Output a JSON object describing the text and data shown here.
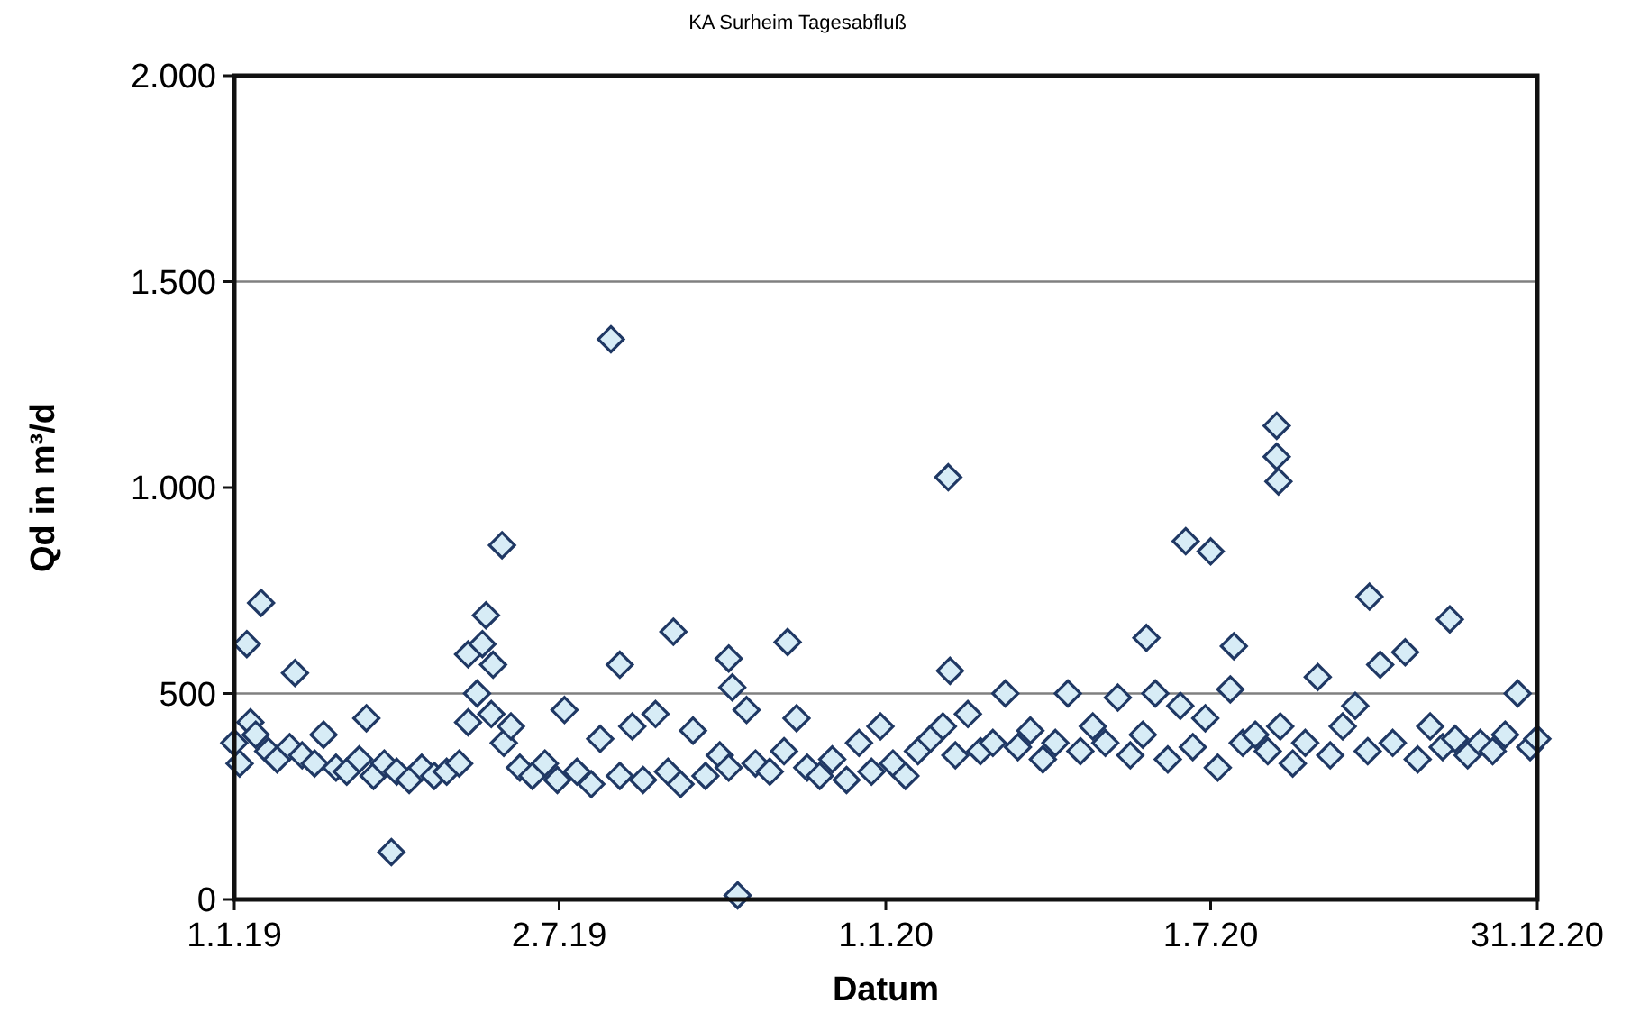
{
  "chart_data": {
    "type": "scatter",
    "title": "KA Surheim Tagesabfluß",
    "xlabel": "Datum",
    "ylabel": "Qd in m³/d",
    "xlim": [
      "2019-01-01",
      "2020-12-31"
    ],
    "xticks": [
      {
        "value": "2019-01-01",
        "label": "1.1.19"
      },
      {
        "value": "2019-07-02",
        "label": "2.7.19"
      },
      {
        "value": "2020-01-01",
        "label": "1.1.20"
      },
      {
        "value": "2020-07-01",
        "label": "1.7.20"
      },
      {
        "value": "2020-12-31",
        "label": "31.12.20"
      }
    ],
    "ylim": [
      0,
      2000
    ],
    "yticks": [
      0,
      {
        "value": 500,
        "label": "500"
      },
      {
        "value": 1000,
        "label": "1.000"
      },
      {
        "value": 1500,
        "label": "1.500"
      },
      {
        "value": 2000,
        "label": "2.000"
      }
    ],
    "ref_lines": [
      {
        "axis": "y",
        "value": 500,
        "color": "#808080"
      },
      {
        "axis": "y",
        "value": 1500,
        "color": "#808080"
      }
    ],
    "marker": "diamond",
    "series": [
      {
        "color": "#1f3864",
        "x": [
          "2019-01-01",
          "2019-01-04",
          "2019-01-10",
          "2019-01-13",
          "2019-01-20",
          "2019-01-25",
          "2019-02-01",
          "2019-02-08",
          "2019-02-15",
          "2019-02-20",
          "2019-02-27",
          "2019-03-05",
          "2019-03-12",
          "2019-03-20",
          "2019-03-26",
          "2019-04-02",
          "2019-04-09",
          "2019-04-16",
          "2019-04-23",
          "2019-04-30",
          "2019-05-07",
          "2019-05-12",
          "2019-05-17",
          "2019-05-25",
          "2019-06-01",
          "2019-06-05",
          "2019-06-10",
          "2019-06-17",
          "2019-06-24",
          "2019-07-01",
          "2019-07-05",
          "2019-07-12",
          "2019-07-20",
          "2019-07-25",
          "2019-08-05",
          "2019-08-12",
          "2019-08-18",
          "2019-08-25",
          "2019-09-01",
          "2019-09-08",
          "2019-09-15",
          "2019-09-22",
          "2019-09-30",
          "2019-10-05",
          "2019-10-15",
          "2019-10-20",
          "2019-10-28",
          "2019-11-05",
          "2019-11-12",
          "2019-11-18",
          "2019-11-25",
          "2019-12-02",
          "2019-12-10",
          "2019-12-17",
          "2019-12-24",
          "2019-12-29",
          "2020-01-05",
          "2020-01-12",
          "2020-01-19",
          "2020-01-26",
          "2020-02-02",
          "2020-02-09",
          "2020-02-16",
          "2020-02-23",
          "2020-03-01",
          "2020-03-08",
          "2020-03-15",
          "2020-03-22",
          "2020-03-29",
          "2020-04-05",
          "2020-04-12",
          "2020-04-19",
          "2020-04-26",
          "2020-05-03",
          "2020-05-10",
          "2020-05-17",
          "2020-05-24",
          "2020-05-31",
          "2020-06-07",
          "2020-06-14",
          "2020-06-21",
          "2020-06-28",
          "2020-07-05",
          "2020-07-12",
          "2020-07-19",
          "2020-07-26",
          "2020-08-02",
          "2020-08-09",
          "2020-08-16",
          "2020-08-23",
          "2020-08-30",
          "2020-09-06",
          "2020-09-13",
          "2020-09-20",
          "2020-09-27",
          "2020-10-04",
          "2020-10-11",
          "2020-10-18",
          "2020-10-25",
          "2020-11-01",
          "2020-11-08",
          "2020-11-15",
          "2020-11-22",
          "2020-11-29",
          "2020-12-06",
          "2020-12-13",
          "2020-12-20",
          "2020-12-27",
          "2020-12-31",
          "2019-01-08",
          "2019-01-16",
          "2019-02-04",
          "2019-03-16",
          "2019-03-30",
          "2019-05-12",
          "2019-05-20",
          "2019-05-22",
          "2019-05-26",
          "2019-05-31",
          "2019-07-31",
          "2019-08-05",
          "2019-09-04",
          "2019-10-05",
          "2019-10-07",
          "2019-10-10",
          "2019-11-07",
          "2020-02-05",
          "2020-02-06",
          "2020-05-26",
          "2020-06-17",
          "2020-07-01",
          "2020-07-14",
          "2020-08-07",
          "2020-08-07",
          "2020-08-08",
          "2020-09-28",
          "2020-11-12"
        ],
        "values": [
          380,
          330,
          430,
          400,
          360,
          340,
          370,
          350,
          330,
          400,
          320,
          310,
          340,
          300,
          330,
          310,
          290,
          320,
          300,
          310,
          330,
          430,
          500,
          450,
          380,
          420,
          320,
          300,
          330,
          290,
          460,
          310,
          280,
          390,
          300,
          420,
          290,
          450,
          310,
          280,
          410,
          300,
          350,
          320,
          460,
          330,
          310,
          360,
          440,
          320,
          300,
          340,
          290,
          380,
          310,
          420,
          330,
          300,
          360,
          390,
          420,
          350,
          450,
          360,
          380,
          500,
          370,
          410,
          340,
          380,
          500,
          360,
          420,
          380,
          490,
          350,
          400,
          500,
          340,
          470,
          370,
          440,
          320,
          510,
          380,
          400,
          360,
          420,
          330,
          380,
          540,
          350,
          420,
          470,
          360,
          570,
          380,
          600,
          340,
          420,
          370,
          390,
          350,
          380,
          360,
          400,
          500,
          370,
          390,
          620,
          720,
          550,
          440,
          115,
          595,
          620,
          690,
          570,
          860,
          1360,
          570,
          650,
          585,
          515,
          10,
          625,
          1025,
          555,
          635,
          870,
          845,
          615,
          1150,
          1075,
          1015,
          735,
          680
        ]
      }
    ]
  }
}
